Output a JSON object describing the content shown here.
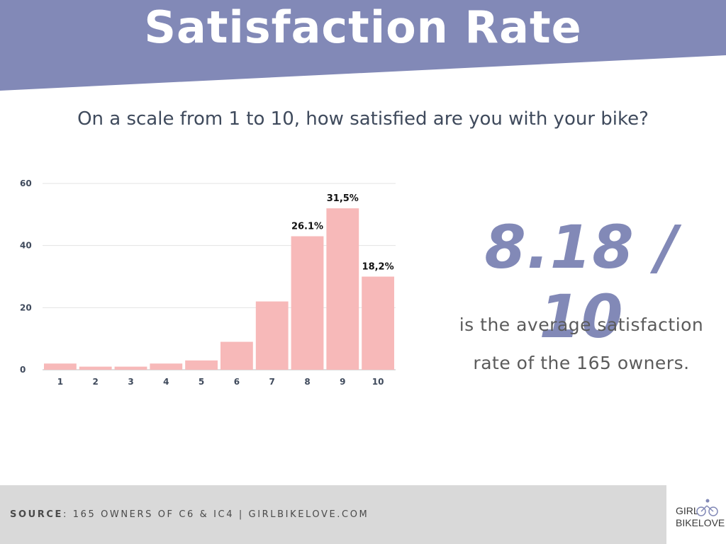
{
  "header": {
    "title": "Satisfaction Rate"
  },
  "question": "On a scale from 1 to 10, how satisfied are you with your bike?",
  "summary": {
    "stat": "8.18 / 10",
    "caption_line1": "is the average satisfaction",
    "caption_line2": "rate of the 165 owners."
  },
  "footer": {
    "source_label": "SOURCE",
    "source_text": ": 165 OWNERS OF C6 & IC4 | GIRLBIKELOVE.COM"
  },
  "logo": {
    "line1": "GIRL",
    "line2": "BIKELOVE"
  },
  "colors": {
    "banner": "#8289b7",
    "bar": "#f7b9b9",
    "stat": "#8289b7",
    "footer": "#d9d9d9"
  },
  "chart_data": {
    "type": "bar",
    "title": "",
    "xlabel": "",
    "ylabel": "",
    "categories": [
      "1",
      "2",
      "3",
      "4",
      "5",
      "6",
      "7",
      "8",
      "9",
      "10"
    ],
    "values": [
      2,
      1,
      1,
      2,
      3,
      9,
      22,
      43,
      52,
      30
    ],
    "data_labels": [
      "",
      "",
      "",
      "",
      "",
      "",
      "",
      "26.1%",
      "31,5%",
      "18,2%"
    ],
    "yticks": [
      0,
      20,
      40,
      60
    ],
    "ylim": [
      0,
      60
    ],
    "grid": true,
    "legend": "none"
  }
}
